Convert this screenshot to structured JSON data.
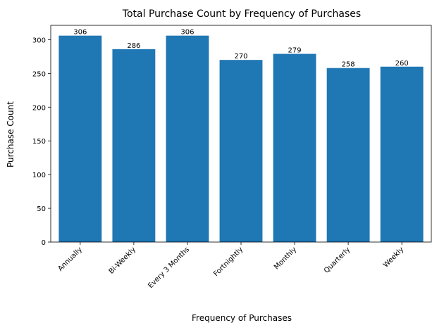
{
  "chart_data": {
    "type": "bar",
    "title": "Total Purchase Count by Frequency of Purchases",
    "xlabel": "Frequency of Purchases",
    "ylabel": "Purchase Count",
    "categories": [
      "Annually",
      "Bi-Weekly",
      "Every 3 Months",
      "Fortnightly",
      "Monthly",
      "Quarterly",
      "Weekly"
    ],
    "values": [
      306,
      286,
      306,
      270,
      279,
      258,
      260
    ],
    "ylim": [
      0,
      321.3
    ],
    "yticks": [
      0,
      50,
      100,
      150,
      200,
      250,
      300
    ],
    "bar_color": "#1f77b4",
    "grid": false,
    "legend": "none",
    "data_labels": true
  }
}
